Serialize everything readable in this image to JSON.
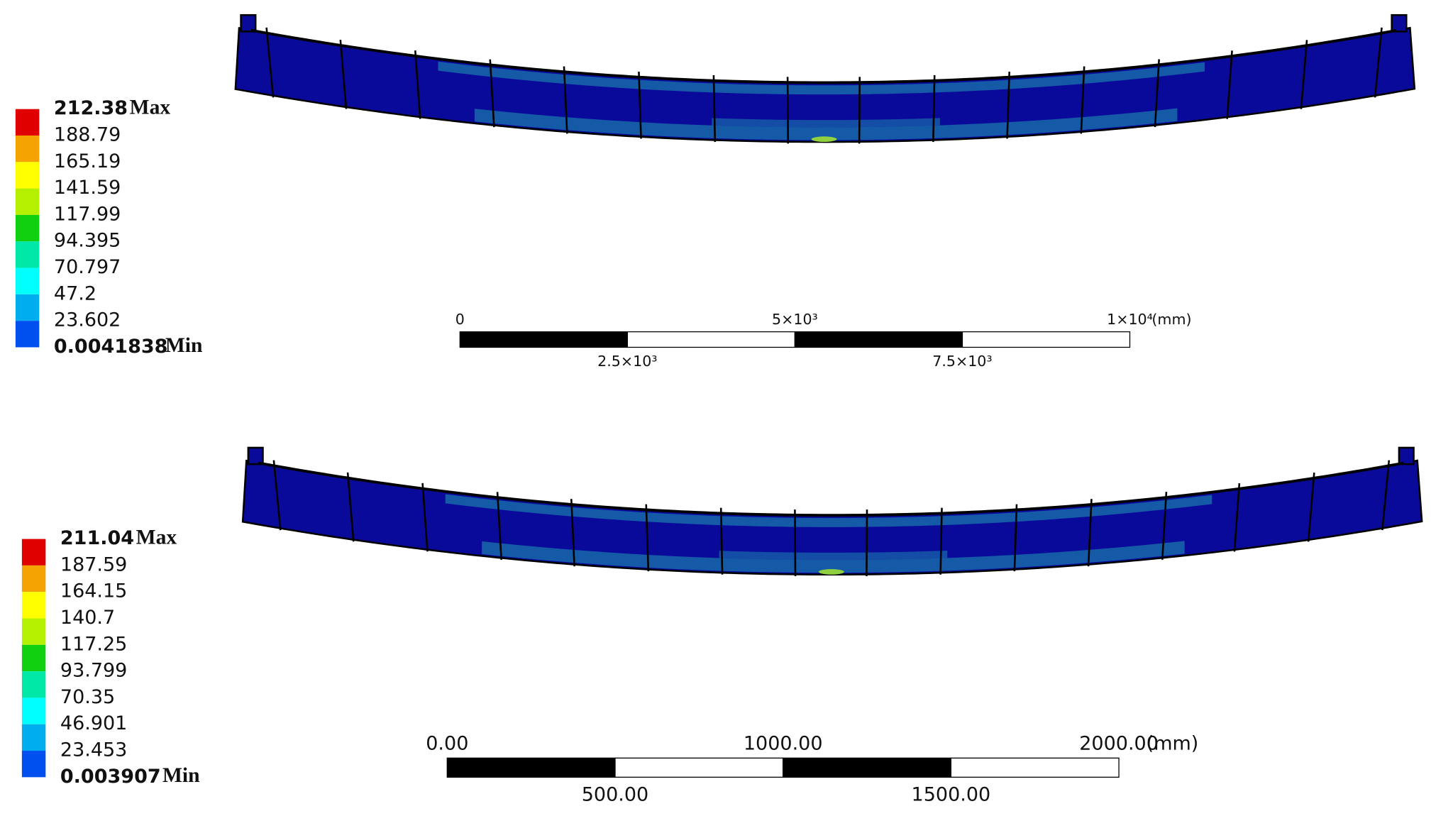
{
  "panels": [
    {
      "legend": {
        "max_value": "212.38",
        "max_label": "Max",
        "levels": [
          "188.79",
          "165.19",
          "141.59",
          "117.99",
          "94.395",
          "70.797",
          "47.2",
          "23.602"
        ],
        "min_value": "0.0041838",
        "min_label": "Min"
      },
      "scale_bar": {
        "labels_top": [
          "0",
          "5×10³",
          "1×10⁴"
        ],
        "labels_bottom": [
          "2.5×10³",
          "7.5×10³"
        ],
        "unit": "(mm)"
      }
    },
    {
      "legend": {
        "max_value": "211.04",
        "max_label": "Max",
        "levels": [
          "187.59",
          "164.15",
          "140.7",
          "117.25",
          "93.799",
          "70.35",
          "46.901",
          "23.453"
        ],
        "min_value": "0.003907",
        "min_label": "Min"
      },
      "scale_bar": {
        "labels_top": [
          "0.00",
          "1000.00",
          "2000.00"
        ],
        "labels_bottom": [
          "500.00",
          "1500.00"
        ],
        "unit": "(mm)"
      }
    }
  ]
}
